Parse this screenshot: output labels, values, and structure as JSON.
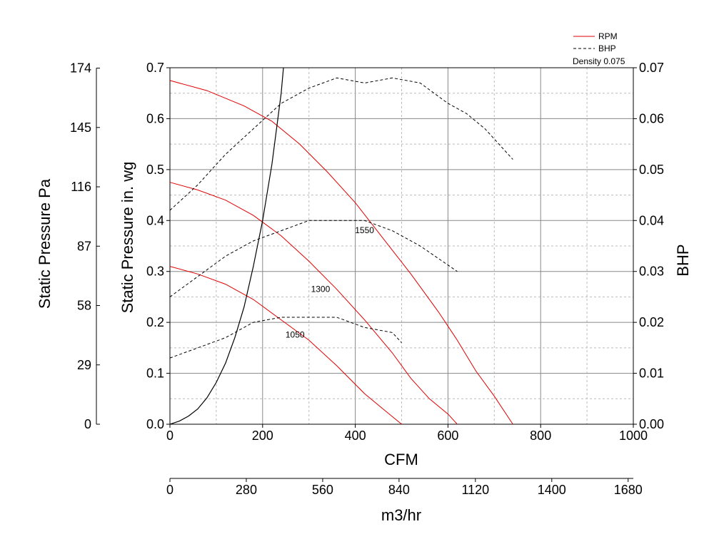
{
  "chart_data": {
    "type": "line",
    "xlabel": "CFM",
    "ylabel": "Static Pressure in. wg",
    "y2label": "BHP",
    "x2label": "m3/hr",
    "y3label": "Static Pressure Pa",
    "xlim": [
      0,
      1000
    ],
    "ylim": [
      0,
      0.7
    ],
    "y2lim": [
      0,
      0.07
    ],
    "grid": true,
    "legend": {
      "position": "top-right",
      "entries": [
        {
          "label": "RPM",
          "color": "#e00000",
          "style": "solid"
        },
        {
          "label": "BHP",
          "color": "#000000",
          "style": "dashed"
        }
      ],
      "note": "Density 0.075"
    },
    "x_ticks": [
      "0",
      "200",
      "400",
      "600",
      "800",
      "1000"
    ],
    "y_ticks": [
      "0.0",
      "0.1",
      "0.2",
      "0.3",
      "0.4",
      "0.5",
      "0.6",
      "0.7"
    ],
    "y2_ticks": [
      "0.00",
      "0.01",
      "0.02",
      "0.03",
      "0.04",
      "0.05",
      "0.06",
      "0.07"
    ],
    "pa_ticks": [
      "0",
      "29",
      "58",
      "87",
      "116",
      "145",
      "174"
    ],
    "m3hr_ticks": [
      "0",
      "280",
      "560",
      "840",
      "1120",
      "1400",
      "1680"
    ],
    "rpm_series": [
      {
        "label": "1550",
        "x": [
          0,
          80,
          160,
          220,
          280,
          340,
          400,
          460,
          520,
          580,
          620,
          660,
          700,
          740
        ],
        "y": [
          0.675,
          0.655,
          0.625,
          0.595,
          0.55,
          0.495,
          0.435,
          0.365,
          0.295,
          0.22,
          0.165,
          0.105,
          0.055,
          0.0
        ]
      },
      {
        "label": "1300",
        "x": [
          0,
          60,
          120,
          180,
          240,
          300,
          360,
          420,
          480,
          520,
          560,
          600,
          620
        ],
        "y": [
          0.475,
          0.46,
          0.44,
          0.41,
          0.37,
          0.32,
          0.265,
          0.205,
          0.14,
          0.09,
          0.05,
          0.02,
          0.0
        ]
      },
      {
        "label": "1050",
        "x": [
          0,
          60,
          120,
          180,
          240,
          300,
          360,
          420,
          460,
          500
        ],
        "y": [
          0.31,
          0.295,
          0.275,
          0.245,
          0.205,
          0.165,
          0.115,
          0.06,
          0.03,
          0.0
        ]
      }
    ],
    "bhp_series": [
      {
        "x": [
          0,
          60,
          120,
          180,
          240,
          300,
          360,
          420,
          480,
          540,
          600,
          640,
          680,
          740
        ],
        "y": [
          0.042,
          0.047,
          0.053,
          0.058,
          0.063,
          0.066,
          0.068,
          0.067,
          0.068,
          0.067,
          0.063,
          0.061,
          0.058,
          0.052
        ]
      },
      {
        "x": [
          0,
          60,
          120,
          180,
          240,
          300,
          360,
          420,
          480,
          540,
          620
        ],
        "y": [
          0.025,
          0.029,
          0.033,
          0.036,
          0.038,
          0.04,
          0.04,
          0.04,
          0.038,
          0.035,
          0.03
        ]
      },
      {
        "x": [
          0,
          60,
          120,
          180,
          240,
          300,
          360,
          420,
          480,
          500
        ],
        "y": [
          0.013,
          0.015,
          0.017,
          0.02,
          0.021,
          0.021,
          0.021,
          0.019,
          0.018,
          0.016
        ]
      }
    ],
    "system_curve": {
      "x": [
        0,
        20,
        40,
        60,
        80,
        100,
        120,
        140,
        160,
        180,
        200,
        220,
        240,
        245
      ],
      "y": [
        0.0,
        0.006,
        0.016,
        0.03,
        0.052,
        0.082,
        0.12,
        0.17,
        0.23,
        0.31,
        0.4,
        0.51,
        0.65,
        0.7
      ]
    }
  }
}
